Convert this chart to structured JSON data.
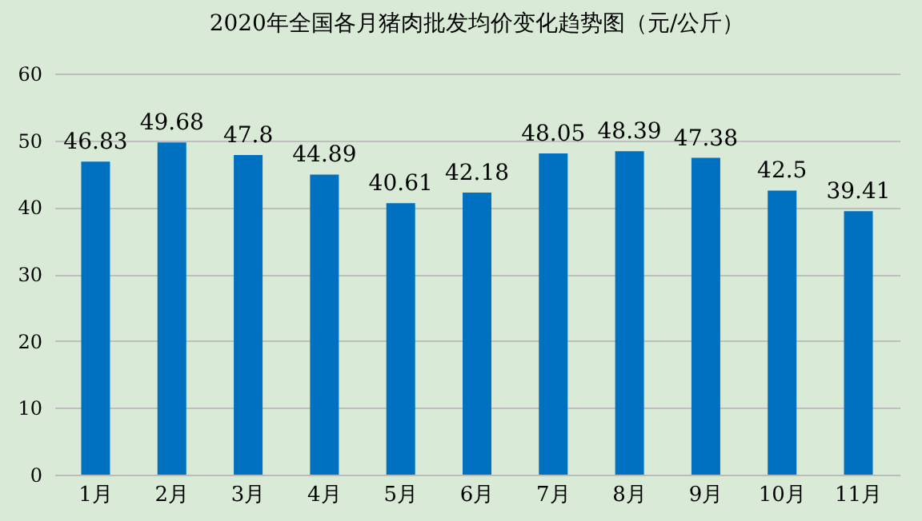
{
  "chart_data": {
    "type": "bar",
    "title": "2020年全国各月猪肉批发均价变化趋势图（元/公斤）",
    "categories": [
      "1月",
      "2月",
      "3月",
      "4月",
      "5月",
      "6月",
      "7月",
      "8月",
      "9月",
      "10月",
      "11月"
    ],
    "values": [
      46.83,
      49.68,
      47.8,
      44.89,
      40.61,
      42.18,
      48.05,
      48.39,
      47.38,
      42.5,
      39.41
    ],
    "color": "#0070c0",
    "ylim": [
      0,
      60
    ],
    "yticks": [
      0,
      10,
      20,
      30,
      40,
      50,
      60
    ],
    "grid": "y",
    "data_labels": true
  }
}
